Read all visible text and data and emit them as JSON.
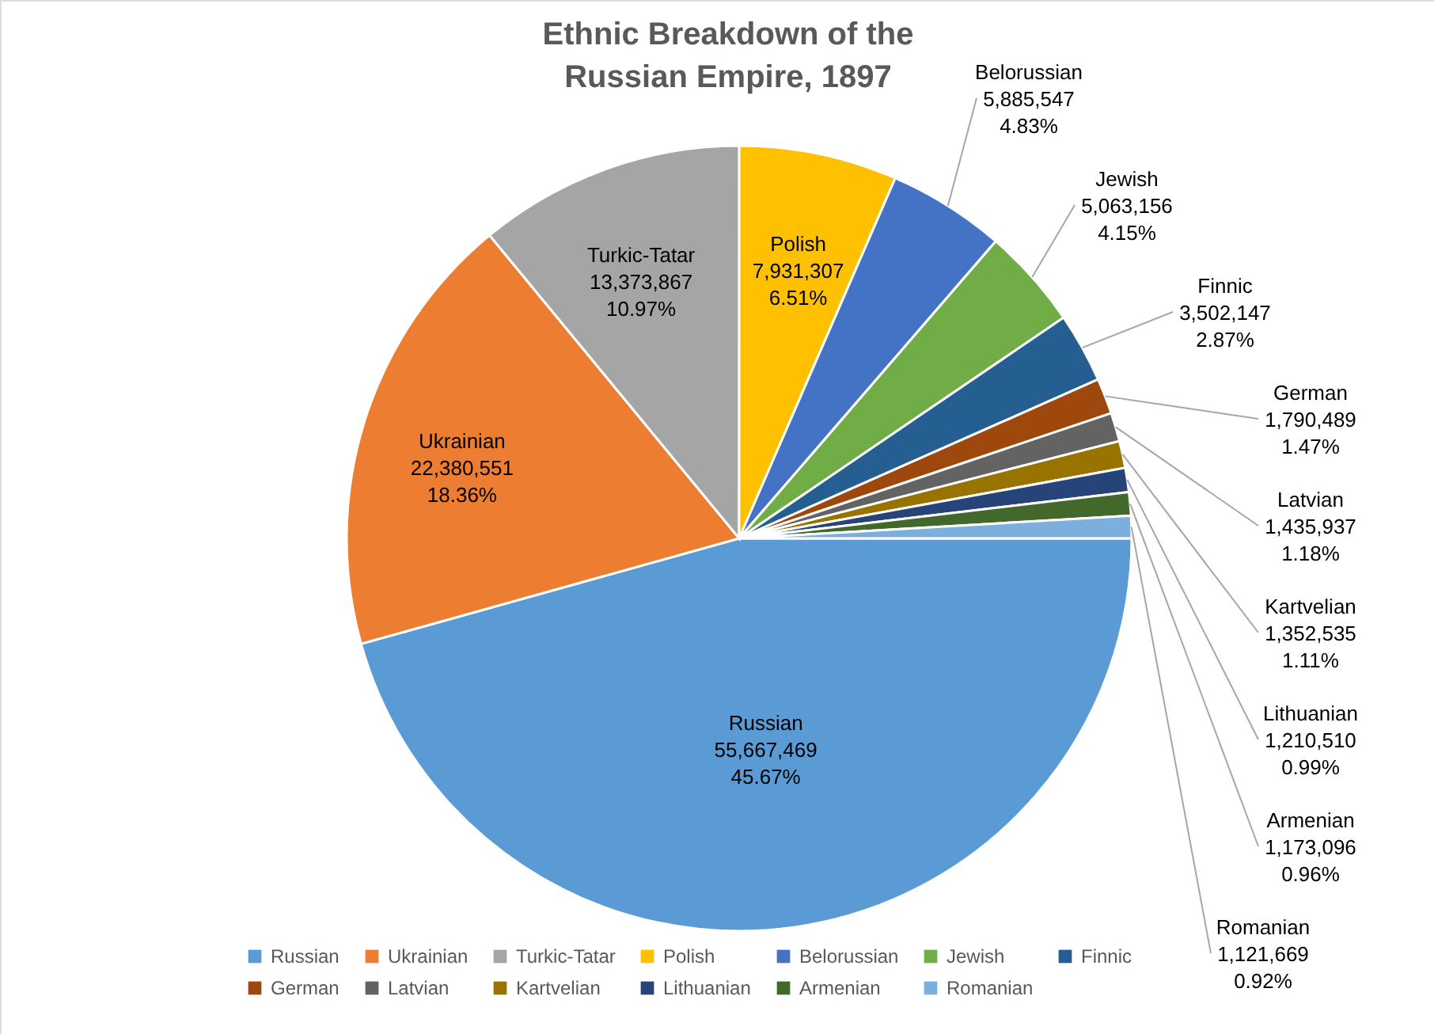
{
  "chart_data": {
    "type": "pie",
    "title": "Ethnic Breakdown of the Russian Empire, 1897",
    "categories": [
      "Russian",
      "Ukrainian",
      "Turkic-Tatar",
      "Polish",
      "Belorussian",
      "Jewish",
      "Finnic",
      "German",
      "Latvian",
      "Kartvelian",
      "Lithuanian",
      "Armenian",
      "Romanian"
    ],
    "values": [
      55667469,
      22380551,
      13373867,
      7931307,
      5885547,
      5063156,
      3502147,
      1790489,
      1435937,
      1352535,
      1210510,
      1173096,
      1121669
    ],
    "value_labels": [
      "55,667,469\n45.67%",
      "22,380,551\n18.36%",
      "13,373,867\n10.97%",
      "7,931,307\n6.51%",
      "5,885,547\n4.83%",
      "5,063,156\n4.15%",
      "3,502,147\n2.87%",
      "1,790,489\n1.47%",
      "1,435,937\n1.18%",
      "1,352,535\n1.11%",
      "1,210,510\n0.99%",
      "1,173,096\n0.96%",
      "1,121,669\n0.92%"
    ],
    "colors": [
      "#5b9bd5",
      "#ed7d31",
      "#a5a5a5",
      "#ffc000",
      "#4472c4",
      "#70ad47",
      "#255e91",
      "#9e480e",
      "#636363",
      "#997300",
      "#264478",
      "#43682b",
      "#7cafdd"
    ],
    "legend": "bottom"
  }
}
